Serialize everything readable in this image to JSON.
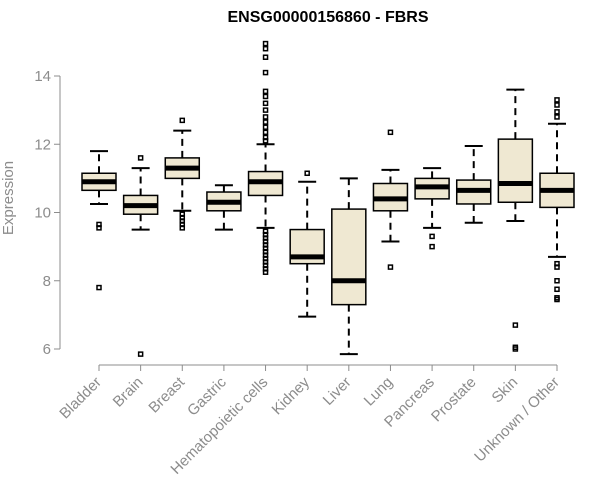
{
  "chart_data": {
    "type": "boxplot",
    "title": "ENSG00000156860 - FBRS",
    "xlabel": "",
    "ylabel": "Expression",
    "ylim": [
      5.6,
      15.2
    ],
    "yticks": [
      6,
      8,
      10,
      12,
      14
    ],
    "grid": false,
    "box_fill": "#efe8d2",
    "categories": [
      "Bladder",
      "Brain",
      "Breast",
      "Gastric",
      "Hematopoietic cells",
      "Kidney",
      "Liver",
      "Lung",
      "Pancreas",
      "Prostate",
      "Skin",
      "Unknown / Other"
    ],
    "series": [
      {
        "name": "Bladder",
        "q1": 10.65,
        "median": 10.9,
        "q3": 11.15,
        "whisker_low": 10.25,
        "whisker_high": 11.8,
        "outliers": [
          9.65,
          9.55,
          7.8
        ]
      },
      {
        "name": "Brain",
        "q1": 9.95,
        "median": 10.2,
        "q3": 10.5,
        "whisker_low": 9.5,
        "whisker_high": 11.3,
        "outliers": [
          11.6,
          5.85
        ]
      },
      {
        "name": "Breast",
        "q1": 11.0,
        "median": 11.3,
        "q3": 11.6,
        "whisker_low": 10.05,
        "whisker_high": 12.4,
        "outliers": [
          12.7,
          9.95,
          9.85,
          9.75,
          9.65,
          9.55
        ]
      },
      {
        "name": "Gastric",
        "q1": 10.05,
        "median": 10.3,
        "q3": 10.6,
        "whisker_low": 9.5,
        "whisker_high": 10.8,
        "outliers": []
      },
      {
        "name": "Hematopoietic cells",
        "q1": 10.5,
        "median": 10.9,
        "q3": 11.2,
        "whisker_low": 9.55,
        "whisker_high": 12.0,
        "outliers": [
          14.95,
          14.8,
          14.55,
          14.1,
          13.55,
          13.4,
          13.2,
          13.0,
          12.8,
          12.65,
          12.5,
          12.35,
          12.2,
          12.1,
          9.45,
          9.35,
          9.25,
          9.15,
          9.05,
          8.95,
          8.85,
          8.75,
          8.65,
          8.55,
          8.45,
          8.35,
          8.25
        ]
      },
      {
        "name": "Kidney",
        "q1": 8.5,
        "median": 8.7,
        "q3": 9.5,
        "whisker_low": 6.95,
        "whisker_high": 10.9,
        "outliers": [
          11.15
        ]
      },
      {
        "name": "Liver",
        "q1": 7.3,
        "median": 8.0,
        "q3": 10.1,
        "whisker_low": 5.85,
        "whisker_high": 11.0,
        "outliers": []
      },
      {
        "name": "Lung",
        "q1": 10.05,
        "median": 10.4,
        "q3": 10.85,
        "whisker_low": 9.15,
        "whisker_high": 11.25,
        "outliers": [
          12.35,
          8.4
        ]
      },
      {
        "name": "Pancreas",
        "q1": 10.4,
        "median": 10.75,
        "q3": 11.0,
        "whisker_low": 9.55,
        "whisker_high": 11.3,
        "outliers": [
          9.3,
          9.0
        ]
      },
      {
        "name": "Prostate",
        "q1": 10.25,
        "median": 10.65,
        "q3": 10.95,
        "whisker_low": 9.7,
        "whisker_high": 11.95,
        "outliers": []
      },
      {
        "name": "Skin",
        "q1": 10.3,
        "median": 10.85,
        "q3": 12.15,
        "whisker_low": 9.75,
        "whisker_high": 13.6,
        "outliers": [
          6.7,
          6.05,
          6.0
        ]
      },
      {
        "name": "Unknown / Other",
        "q1": 10.15,
        "median": 10.65,
        "q3": 11.15,
        "whisker_low": 8.7,
        "whisker_high": 12.6,
        "outliers": [
          13.3,
          13.15,
          12.95,
          12.8,
          8.5,
          8.4,
          8.0,
          7.75,
          7.5,
          7.45
        ]
      }
    ]
  }
}
